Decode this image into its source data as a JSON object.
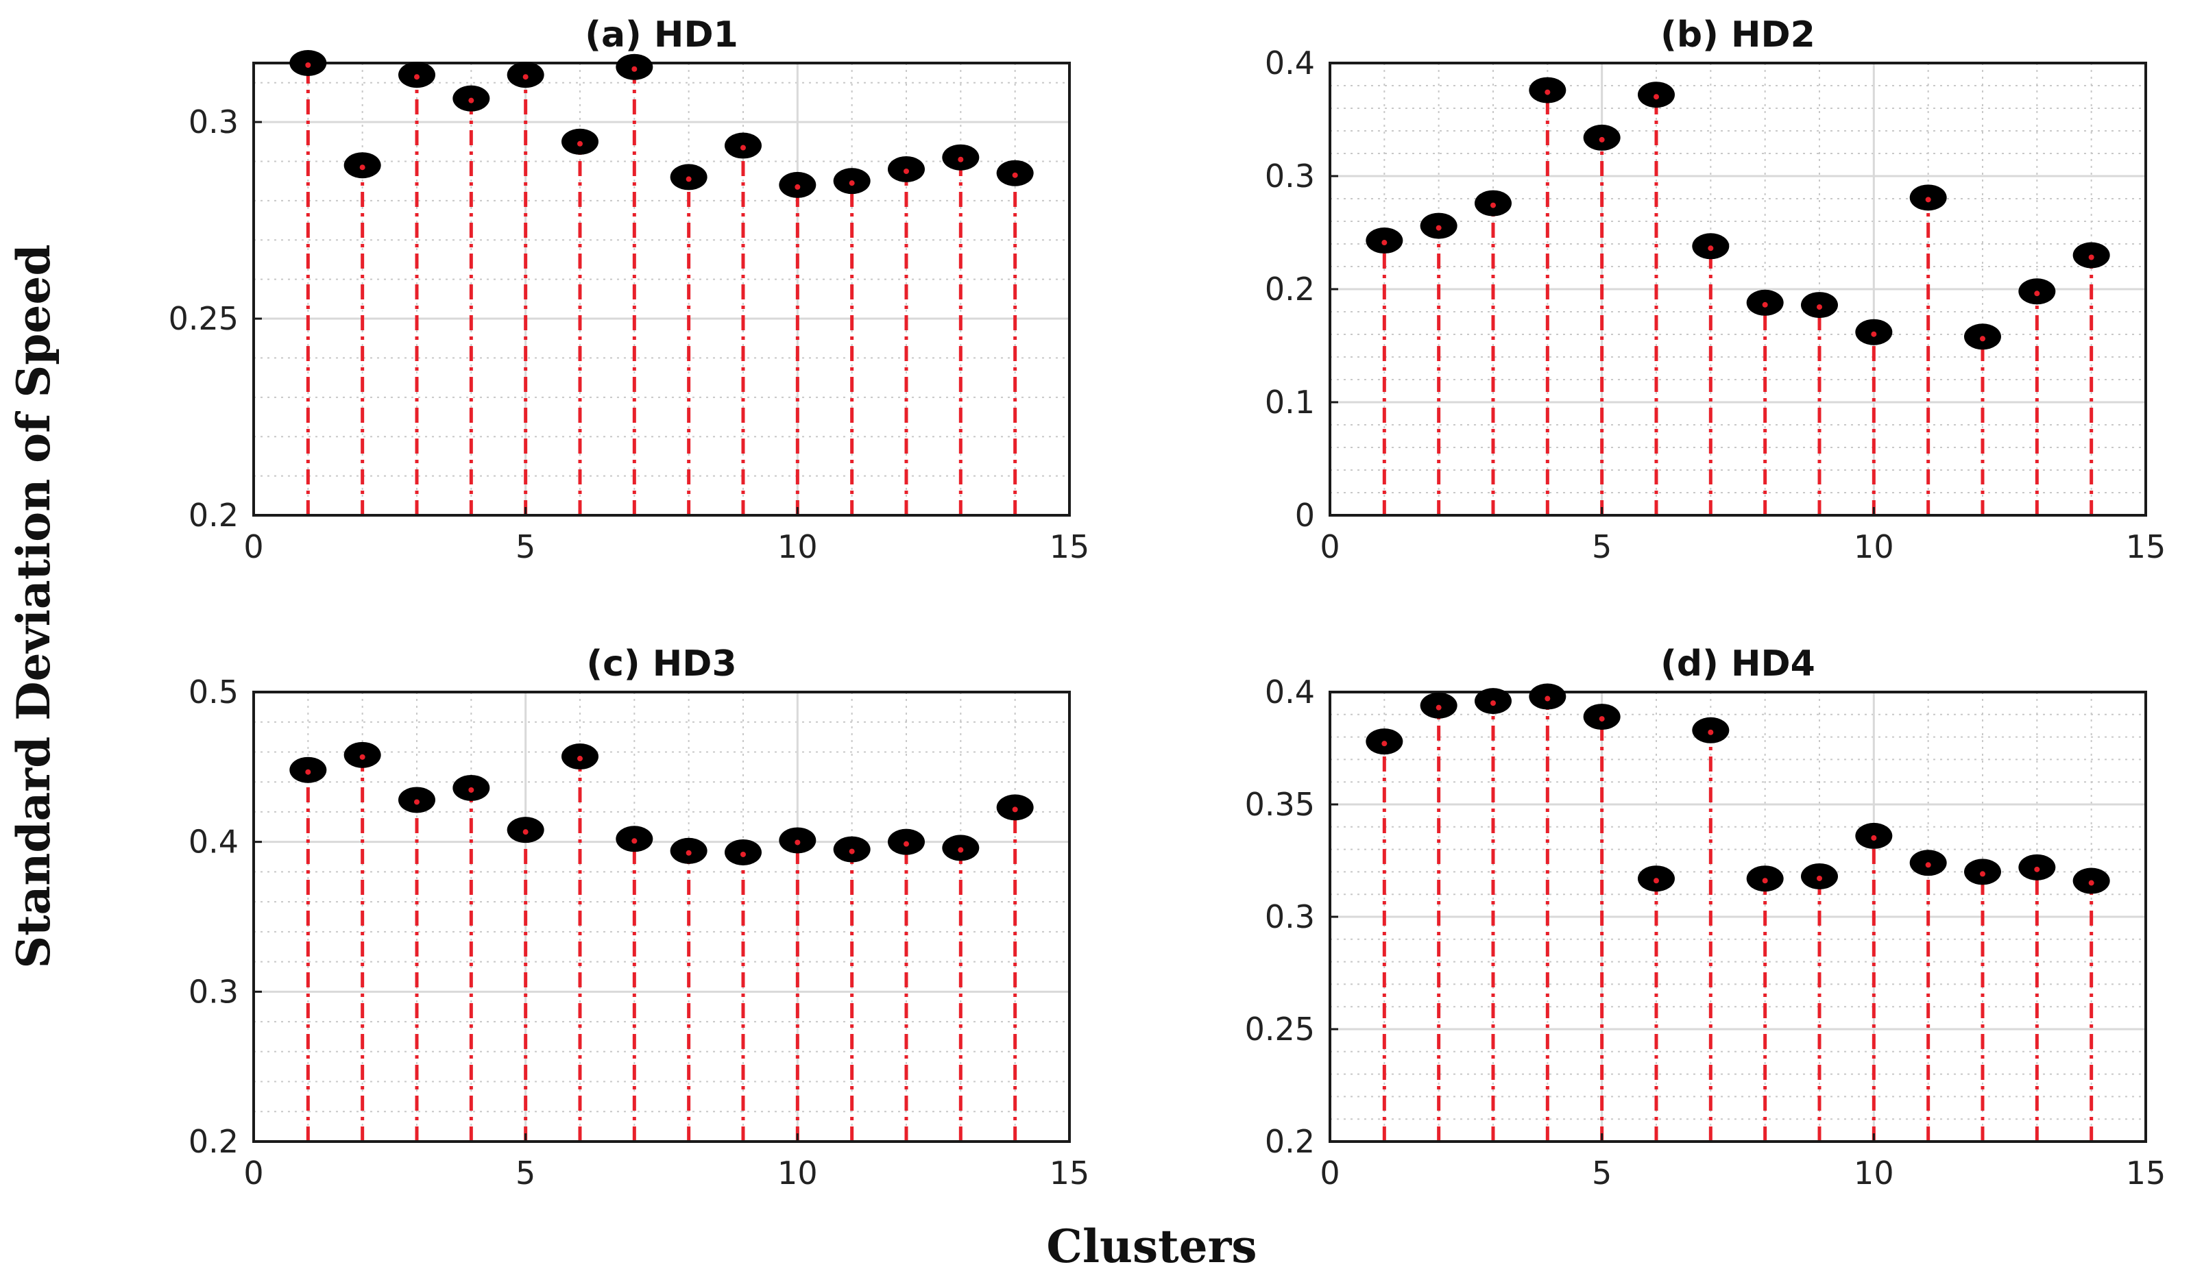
{
  "figure": {
    "ylabel": "Standard Deviation of Speed",
    "xlabel": "Clusters"
  },
  "colors": {
    "stem": "#e8202a",
    "marker": "#000000",
    "grid_major": "#d9d9d9",
    "grid_minor": "#c8c8c8",
    "axis": "#1a1a1a"
  },
  "chart_data": [
    {
      "type": "stem",
      "title": "(a) HD1",
      "xlim": [
        0,
        15
      ],
      "ylim": [
        0.2,
        0.315
      ],
      "xticks": [
        0,
        5,
        10,
        15
      ],
      "xtick_labels": [
        "0",
        "5",
        "10",
        "15"
      ],
      "yticks": [
        0.2,
        0.25,
        0.3
      ],
      "ytick_labels": [
        "0.2",
        "0.25",
        "0.3"
      ],
      "grid": true,
      "x": [
        1,
        2,
        3,
        4,
        5,
        6,
        7,
        8,
        9,
        10,
        11,
        12,
        13,
        14
      ],
      "values": [
        0.315,
        0.289,
        0.312,
        0.306,
        0.312,
        0.295,
        0.314,
        0.286,
        0.294,
        0.284,
        0.285,
        0.288,
        0.291,
        0.287
      ]
    },
    {
      "type": "stem",
      "title": "(b) HD2",
      "xlim": [
        0,
        15
      ],
      "ylim": [
        0,
        0.4
      ],
      "xticks": [
        0,
        5,
        10,
        15
      ],
      "xtick_labels": [
        "0",
        "5",
        "10",
        "15"
      ],
      "yticks": [
        0,
        0.1,
        0.2,
        0.3,
        0.4
      ],
      "ytick_labels": [
        "0",
        "0.1",
        "0.2",
        "0.3",
        "0.4"
      ],
      "grid": true,
      "x": [
        1,
        2,
        3,
        4,
        5,
        6,
        7,
        8,
        9,
        10,
        11,
        12,
        13,
        14
      ],
      "values": [
        0.243,
        0.256,
        0.276,
        0.376,
        0.334,
        0.372,
        0.238,
        0.188,
        0.186,
        0.162,
        0.281,
        0.158,
        0.198,
        0.23
      ]
    },
    {
      "type": "stem",
      "title": "(c) HD3",
      "xlim": [
        0,
        15
      ],
      "ylim": [
        0.2,
        0.5
      ],
      "xticks": [
        0,
        5,
        10,
        15
      ],
      "xtick_labels": [
        "0",
        "5",
        "10",
        "15"
      ],
      "yticks": [
        0.2,
        0.3,
        0.4,
        0.5
      ],
      "ytick_labels": [
        "0.2",
        "0.3",
        "0.4",
        "0.5"
      ],
      "grid": true,
      "x": [
        1,
        2,
        3,
        4,
        5,
        6,
        7,
        8,
        9,
        10,
        11,
        12,
        13,
        14
      ],
      "values": [
        0.448,
        0.458,
        0.428,
        0.436,
        0.408,
        0.457,
        0.402,
        0.394,
        0.393,
        0.401,
        0.395,
        0.4,
        0.396,
        0.423
      ]
    },
    {
      "type": "stem",
      "title": "(d) HD4",
      "xlim": [
        0,
        15
      ],
      "ylim": [
        0.2,
        0.4
      ],
      "xticks": [
        0,
        5,
        10,
        15
      ],
      "xtick_labels": [
        "0",
        "5",
        "10",
        "15"
      ],
      "yticks": [
        0.2,
        0.25,
        0.3,
        0.35,
        0.4
      ],
      "ytick_labels": [
        "0.2",
        "0.25",
        "0.3",
        "0.35",
        "0.4"
      ],
      "grid": true,
      "x": [
        1,
        2,
        3,
        4,
        5,
        6,
        7,
        8,
        9,
        10,
        11,
        12,
        13,
        14
      ],
      "values": [
        0.378,
        0.394,
        0.396,
        0.398,
        0.389,
        0.317,
        0.383,
        0.317,
        0.318,
        0.336,
        0.324,
        0.32,
        0.322,
        0.316
      ]
    }
  ]
}
